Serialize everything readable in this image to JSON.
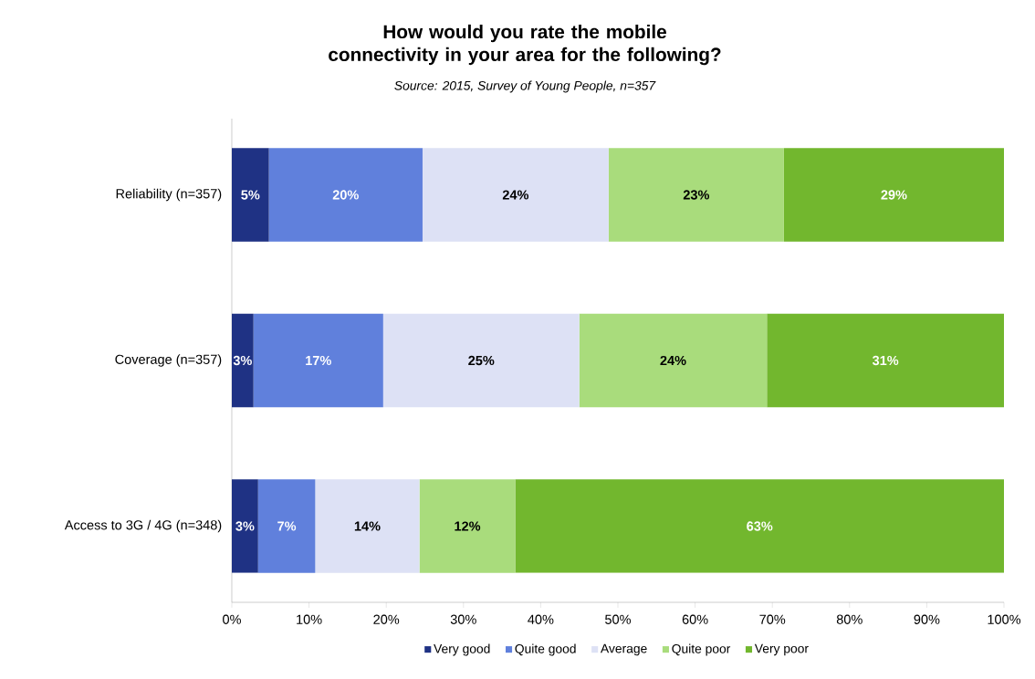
{
  "chart_data": {
    "type": "bar",
    "orientation": "horizontal",
    "stacked": true,
    "title": "How would you rate the mobile connectivity in your area for the following?",
    "subtitle": "Source: 2015, Survey of Young People, n=357",
    "categories": [
      "Reliability (n=357)",
      "Coverage (n=357)",
      "Access to 3G / 4G (n=348)"
    ],
    "series": [
      {
        "name": "Very good",
        "color": "#1f3284",
        "values": [
          4.8,
          2.8,
          3.4
        ],
        "value_labels": [
          "5%",
          "3%",
          "3%"
        ]
      },
      {
        "name": "Quite good",
        "color": "#6080dc",
        "values": [
          19.9,
          16.8,
          7.4
        ],
        "value_labels": [
          "20%",
          "17%",
          "7%"
        ]
      },
      {
        "name": "Average",
        "color": "#dde1f5",
        "values": [
          24.1,
          25.4,
          13.5
        ],
        "value_labels": [
          "24%",
          "25%",
          "14%"
        ]
      },
      {
        "name": "Quite poor",
        "color": "#a9dc7c",
        "values": [
          22.7,
          24.3,
          12.4
        ],
        "value_labels": [
          "23%",
          "24%",
          "12%"
        ]
      },
      {
        "name": "Very poor",
        "color": "#72b72e",
        "values": [
          28.5,
          30.7,
          63.3
        ],
        "value_labels": [
          "29%",
          "31%",
          "63%"
        ]
      }
    ],
    "xlim": [
      0,
      100
    ],
    "xticks": [
      {
        "value": 0,
        "label": "0%"
      },
      {
        "value": 10,
        "label": "10%"
      },
      {
        "value": 20,
        "label": "20%"
      },
      {
        "value": 30,
        "label": "30%"
      },
      {
        "value": 40,
        "label": "40%"
      },
      {
        "value": 50,
        "label": "50%"
      },
      {
        "value": 60,
        "label": "60%"
      },
      {
        "value": 70,
        "label": "70%"
      },
      {
        "value": 80,
        "label": "80%"
      },
      {
        "value": 90,
        "label": "90%"
      },
      {
        "value": 100,
        "label": "100%"
      }
    ],
    "legend": "bottom",
    "grid": false
  }
}
